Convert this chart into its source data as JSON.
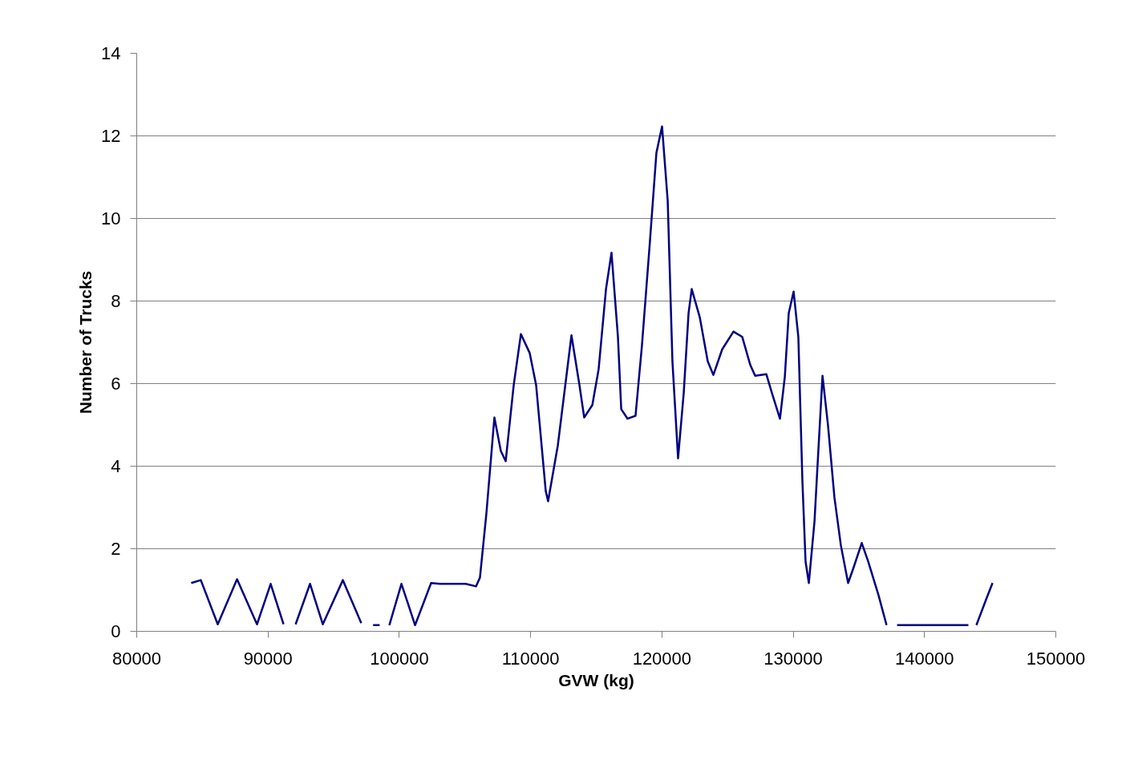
{
  "chart_data": {
    "type": "line",
    "xlabel": "GVW (kg)",
    "ylabel": "Number of Trucks",
    "x": [
      84150,
      84880,
      86170,
      87640,
      89160,
      90200,
      91180,
      91600,
      92100,
      93200,
      94170,
      95700,
      97100,
      97500,
      98000,
      98500,
      98800,
      99240,
      100160,
      101200,
      102420,
      103090,
      105050,
      105840,
      106140,
      106630,
      107240,
      107730,
      108100,
      108710,
      109260,
      109930,
      110420,
      111150,
      111330,
      112070,
      113110,
      113720,
      114080,
      114700,
      115180,
      115740,
      116160,
      116650,
      116900,
      117380,
      117990,
      118480,
      119090,
      119580,
      120010,
      120440,
      120800,
      121230,
      121660,
      122030,
      122270,
      122880,
      123490,
      123920,
      124590,
      125450,
      126120,
      126730,
      127100,
      127950,
      128380,
      128990,
      129360,
      129660,
      130030,
      130390,
      130700,
      130940,
      131190,
      131620,
      131920,
      132230,
      132650,
      133140,
      133630,
      134180,
      134550,
      135220,
      135710,
      136500,
      137110,
      137500,
      137910,
      143340,
      143600,
      143950,
      144750,
      145180
    ],
    "series": [
      {
        "color": "#000080",
        "values": [
          1.17,
          1.24,
          0.17,
          1.26,
          0.17,
          1.15,
          0.17,
          null,
          0.17,
          1.15,
          0.17,
          1.24,
          0.2,
          null,
          0.15,
          0.15,
          null,
          0.15,
          1.15,
          0.15,
          1.17,
          1.15,
          1.15,
          1.09,
          1.3,
          2.85,
          5.18,
          4.37,
          4.12,
          5.96,
          7.2,
          6.74,
          5.96,
          3.4,
          3.15,
          4.5,
          7.17,
          5.96,
          5.18,
          5.48,
          6.35,
          8.29,
          9.17,
          7.13,
          5.38,
          5.15,
          5.22,
          6.93,
          9.46,
          11.59,
          12.23,
          10.43,
          6.54,
          4.19,
          5.77,
          7.71,
          8.29,
          7.61,
          6.54,
          6.21,
          6.83,
          7.26,
          7.13,
          6.45,
          6.19,
          6.23,
          5.77,
          5.15,
          6.16,
          7.71,
          8.23,
          7.13,
          3.63,
          1.69,
          1.17,
          2.66,
          4.41,
          6.19,
          4.99,
          3.24,
          2.08,
          1.17,
          1.5,
          2.14,
          1.69,
          0.87,
          0.15,
          null,
          0.15,
          0.15,
          null,
          0.15,
          0.82,
          1.17
        ]
      }
    ],
    "xlim": [
      80000,
      150000
    ],
    "xticks": [
      80000,
      90000,
      100000,
      110000,
      120000,
      130000,
      140000,
      150000
    ],
    "ylim": [
      0,
      14
    ],
    "yticks": [
      0,
      2,
      4,
      6,
      8,
      10,
      12,
      14
    ],
    "grid": "y",
    "marker": "none",
    "line_style": "solid"
  }
}
